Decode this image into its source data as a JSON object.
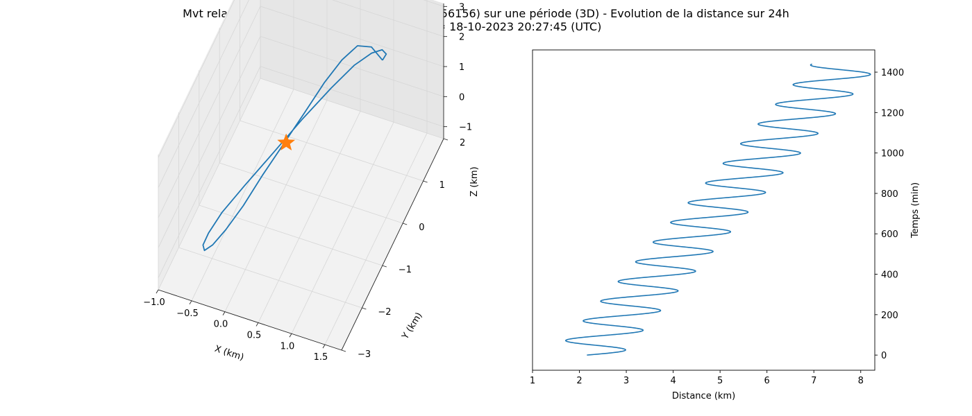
{
  "figure": {
    "title_line1": "Mvt relatif de OBJECT C (56155) vs OBJECT D (56156) sur une période (3D) - Evolution de la distance sur 24h",
    "title_line2": "Date début = 18-10-2023 20:27:45 (UTC)"
  },
  "colors": {
    "series": "#1f77b4",
    "marker": "#ff7f0e",
    "pane": "#f2f2f2",
    "grid": "#d6d6d6"
  },
  "chart_data": [
    {
      "type": "line3d",
      "title": "",
      "xlabel": "X (km)",
      "ylabel": "Y (km)",
      "zlabel": "Z (km)",
      "xlim": [
        -1.0,
        1.75
      ],
      "ylim": [
        -3,
        2
      ],
      "zlim": [
        -1.4,
        3.1
      ],
      "xticks": [
        "−1.0",
        "−0.5",
        "0.0",
        "0.5",
        "1.0",
        "1.5"
      ],
      "yticks": [
        "−3",
        "−2",
        "−1",
        "0",
        "1",
        "2"
      ],
      "zticks": [
        "−1",
        "0",
        "1",
        "2",
        "3"
      ],
      "grid": true,
      "marker": {
        "shape": "star",
        "x": 0,
        "y": 0,
        "z": 0
      },
      "series": [
        {
          "x": [
            1.2,
            1.05,
            0.88,
            0.72,
            0.56,
            0.38,
            0.18,
            -0.02,
            -0.2,
            -0.38,
            -0.52,
            -0.62,
            -0.66,
            -0.62,
            -0.5,
            -0.28,
            0.0,
            0.28,
            0.56,
            0.8,
            1.0,
            1.14,
            1.22,
            1.2
          ],
          "y": [
            0.8,
            0.75,
            0.62,
            0.38,
            0.05,
            -0.32,
            -0.72,
            -1.1,
            -1.45,
            -1.72,
            -1.9,
            -1.98,
            -1.92,
            -1.78,
            -1.52,
            -1.12,
            -0.62,
            -0.1,
            0.38,
            0.72,
            0.92,
            0.98,
            0.92,
            0.8
          ],
          "z": [
            2.5,
            2.9,
            3.0,
            2.75,
            2.35,
            1.75,
            1.1,
            0.45,
            -0.2,
            -0.75,
            -1.1,
            -1.25,
            -1.18,
            -0.95,
            -0.55,
            -0.05,
            0.55,
            1.15,
            1.7,
            2.15,
            2.42,
            2.55,
            2.55,
            2.5
          ]
        }
      ]
    },
    {
      "type": "line",
      "title": "",
      "xlabel": "Distance (km)",
      "ylabel": "Temps (min)",
      "xlim": [
        1.0,
        8.3
      ],
      "ylim": [
        -75,
        1510
      ],
      "xticks": [
        1,
        2,
        3,
        4,
        5,
        6,
        7,
        8
      ],
      "yticks": [
        0,
        200,
        400,
        600,
        800,
        1000,
        1200,
        1400
      ],
      "yaxis_position": "right",
      "grid": false,
      "series": [
        {
          "model": "d = 2.16 + 0.00383 t + 0.73 sin(2πt/97.4)",
          "t_start": 0,
          "t_end": 1440,
          "t_step": 1
        }
      ]
    }
  ]
}
